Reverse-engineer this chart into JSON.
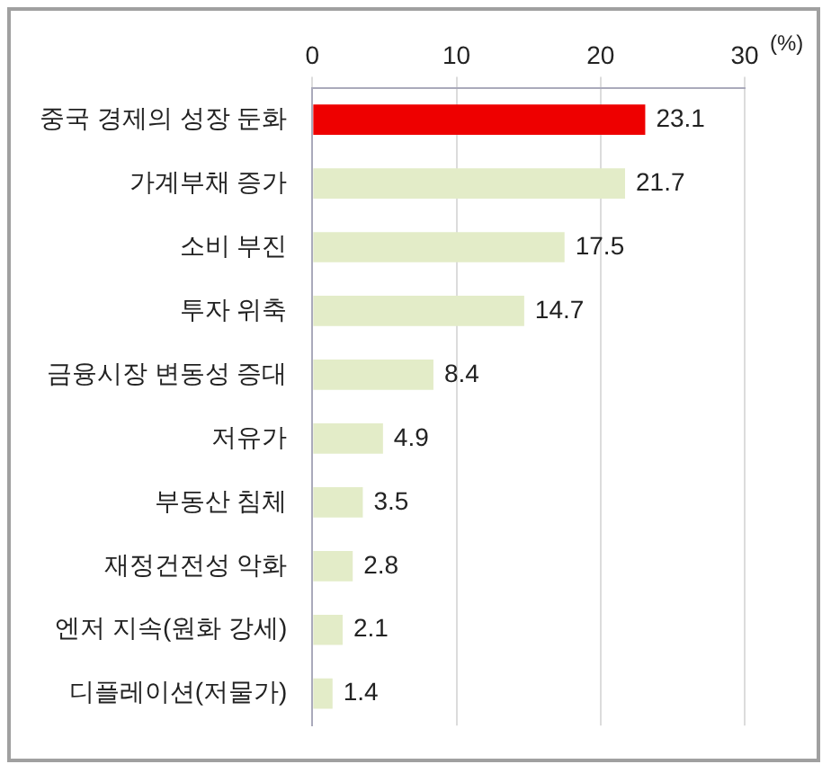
{
  "chart_data": {
    "type": "bar",
    "orientation": "horizontal",
    "xlabel": "(%)",
    "categories": [
      "중국 경제의 성장 둔화",
      "가계부채 증가",
      "소비 부진",
      "투자 위축",
      "금융시장 변동성 증대",
      "저유가",
      "부동산 침체",
      "재정건전성 악화",
      "엔저 지속(원화 강세)",
      "디플레이션(저물가)"
    ],
    "values": [
      23.1,
      21.7,
      17.5,
      14.7,
      8.4,
      4.9,
      3.5,
      2.8,
      2.1,
      1.4
    ],
    "colors": [
      "#ee0000",
      "#e3ecc8",
      "#e3ecc8",
      "#e3ecc8",
      "#e3ecc8",
      "#e3ecc8",
      "#e3ecc8",
      "#e3ecc8",
      "#e3ecc8",
      "#e3ecc8"
    ],
    "xlim": [
      0,
      30
    ],
    "xticks": [
      0,
      10,
      20,
      30
    ],
    "grid": "x",
    "data_labels": true
  }
}
